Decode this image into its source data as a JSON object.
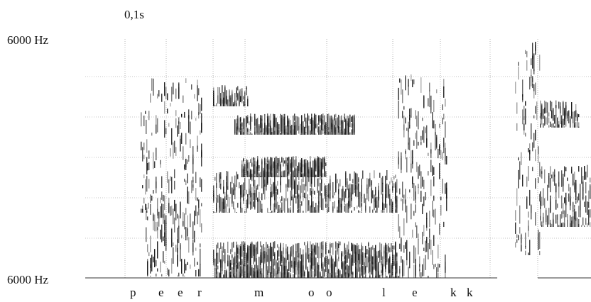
{
  "chart_data": {
    "type": "heatmap",
    "title": "",
    "time_scale_label": "0,1s",
    "y_top_label": "6000 Hz",
    "y_bottom_label": "6000 Hz",
    "grid": true,
    "segments": [
      "p",
      "e",
      "e",
      "r",
      "m",
      "o",
      "o",
      "l",
      "e",
      "k",
      "k"
    ],
    "ink_color": "#111111",
    "grid_color": "#8a8a8a"
  }
}
